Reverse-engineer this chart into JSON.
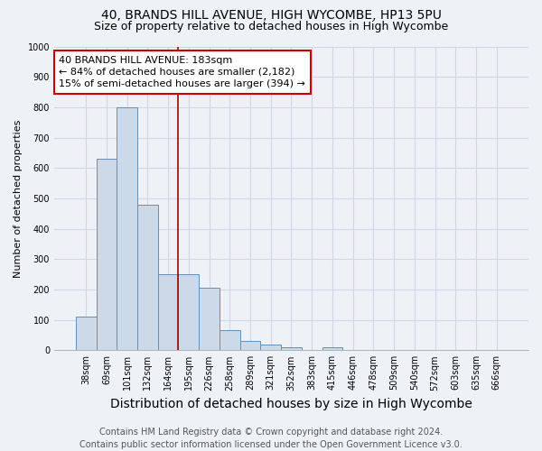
{
  "title": "40, BRANDS HILL AVENUE, HIGH WYCOMBE, HP13 5PU",
  "subtitle": "Size of property relative to detached houses in High Wycombe",
  "xlabel": "Distribution of detached houses by size in High Wycombe",
  "ylabel": "Number of detached properties",
  "bar_labels": [
    "38sqm",
    "69sqm",
    "101sqm",
    "132sqm",
    "164sqm",
    "195sqm",
    "226sqm",
    "258sqm",
    "289sqm",
    "321sqm",
    "352sqm",
    "383sqm",
    "415sqm",
    "446sqm",
    "478sqm",
    "509sqm",
    "540sqm",
    "572sqm",
    "603sqm",
    "635sqm",
    "666sqm"
  ],
  "bar_values": [
    110,
    630,
    800,
    480,
    250,
    250,
    205,
    65,
    30,
    20,
    10,
    0,
    10,
    0,
    0,
    0,
    0,
    0,
    0,
    0,
    0
  ],
  "bar_color": "#ccd9e8",
  "bar_edge_color": "#6090b8",
  "vline_x": 4.5,
  "vline_color": "#aa0000",
  "annotation_text": "40 BRANDS HILL AVENUE: 183sqm\n← 84% of detached houses are smaller (2,182)\n15% of semi-detached houses are larger (394) →",
  "annotation_box_color": "#ffffff",
  "annotation_box_edge": "#cc0000",
  "ylim": [
    0,
    1000
  ],
  "yticks": [
    0,
    100,
    200,
    300,
    400,
    500,
    600,
    700,
    800,
    900,
    1000
  ],
  "background_color": "#eef2f7",
  "grid_color": "#d0d8e8",
  "footer_text": "Contains HM Land Registry data © Crown copyright and database right 2024.\nContains public sector information licensed under the Open Government Licence v3.0.",
  "title_fontsize": 10,
  "subtitle_fontsize": 9,
  "xlabel_fontsize": 10,
  "ylabel_fontsize": 8,
  "tick_fontsize": 7,
  "annotation_fontsize": 8,
  "footer_fontsize": 7
}
